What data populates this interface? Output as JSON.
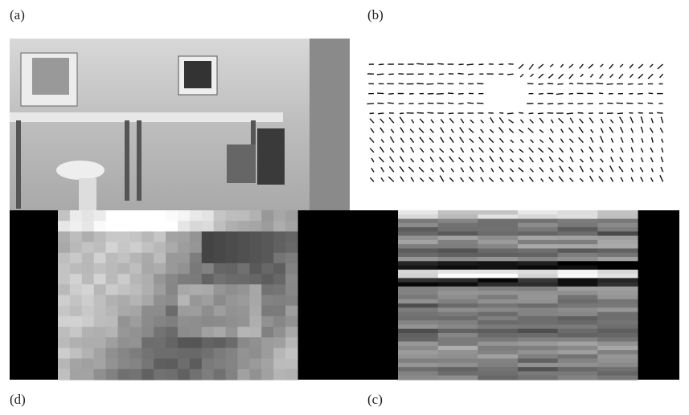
{
  "panels": [
    {
      "label": "(a)"
    },
    {
      "label": "(b)"
    },
    {
      "label": "(d)"
    },
    {
      "label": "(c)"
    }
  ]
}
